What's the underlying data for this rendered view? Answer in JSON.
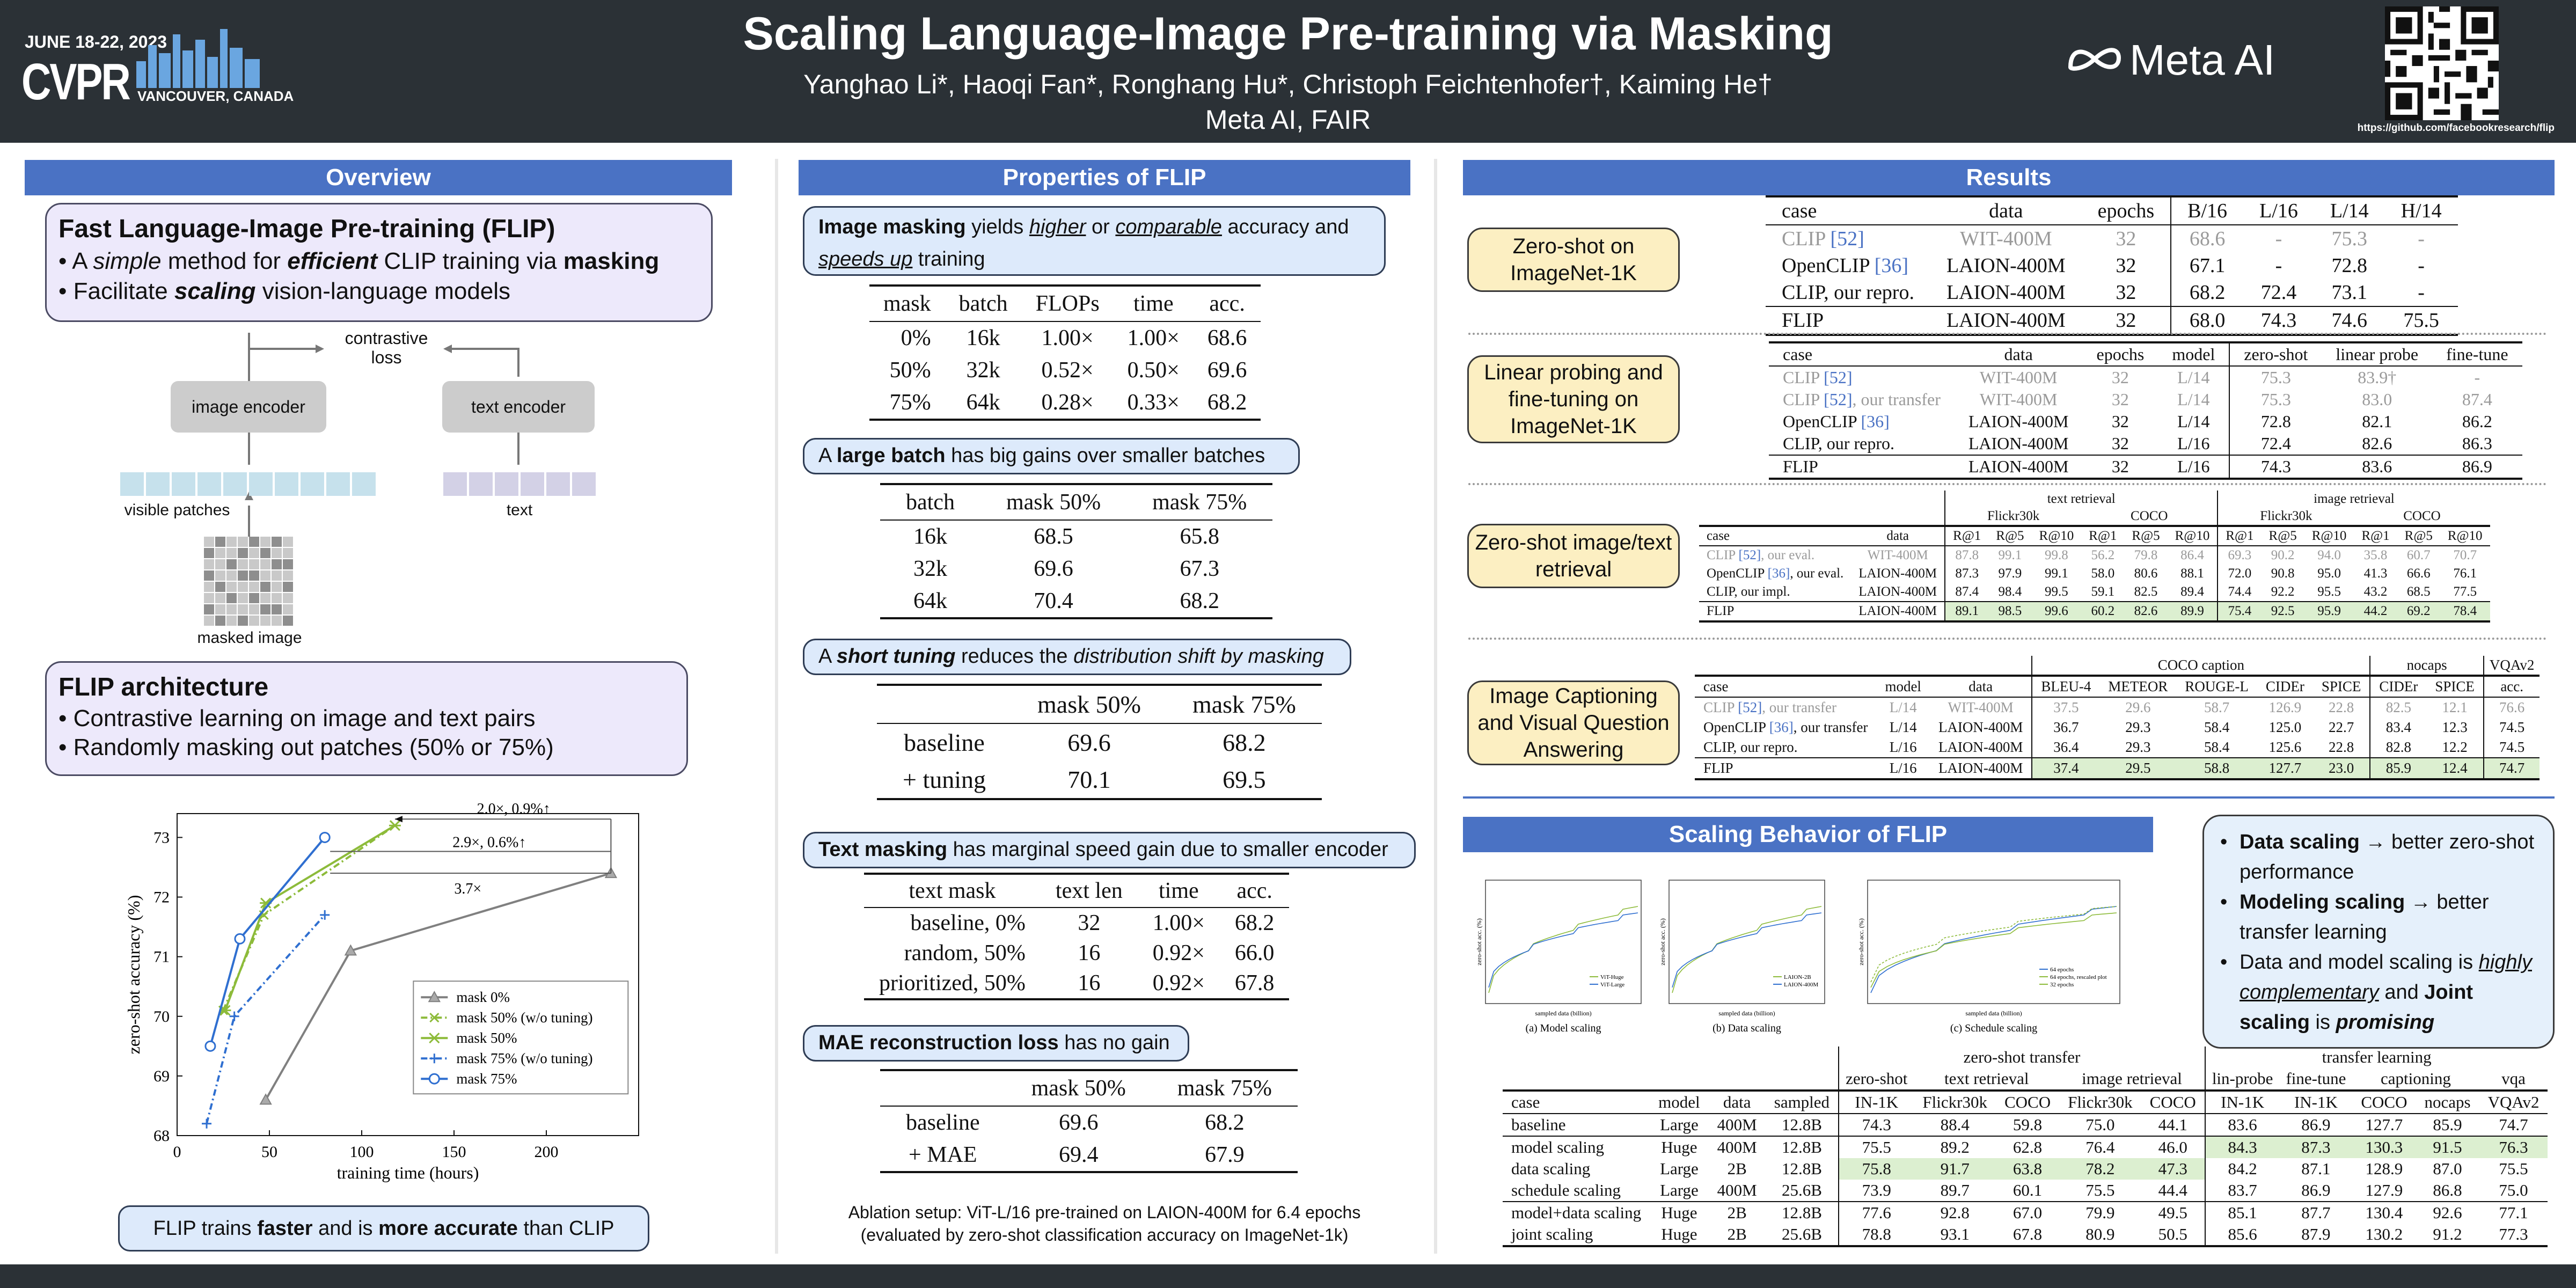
{
  "header": {
    "title": "Scaling Language-Image Pre-training via Masking",
    "authors": "Yanghao Li*, Haoqi Fan*, Ronghang Hu*, Christoph Feichtenhofer†, Kaiming He†",
    "affiliation": "Meta AI, FAIR",
    "conf_date": "JUNE 18-22, 2023",
    "conf_name": "CVPR",
    "conf_location": "VANCOUVER, CANADA",
    "meta_logo": "Meta AI",
    "url": "https://github.com/facebookresearch/flip"
  },
  "sections": {
    "overview": "Overview",
    "properties": "Properties of FLIP",
    "results": "Results",
    "scaling": "Scaling Behavior of FLIP"
  },
  "overview": {
    "box1_title": "Fast Language-Image Pre-training (FLIP)",
    "box1_l1_a": "• A ",
    "box1_l1_b": "simple",
    "box1_l1_c": " method for ",
    "box1_l1_d": "efficient",
    "box1_l1_e": " CLIP training via ",
    "box1_l1_f": "masking",
    "box1_l2_a": "• Facilitate ",
    "box1_l2_b": "scaling",
    "box1_l2_c": " vision-language models",
    "contrastive": "contrastive",
    "loss": "loss",
    "image_encoder": "image encoder",
    "text_encoder": "text encoder",
    "visible_patches": "visible patches",
    "text": "text",
    "masked_image": "masked image",
    "box2_title": "FLIP architecture",
    "box2_l1": "• Contrastive learning on image and text pairs",
    "box2_l2": "• Randomly masking out patches (50% or 75%)",
    "caption_a": "FLIP trains ",
    "caption_b": "faster",
    "caption_c": " and is ",
    "caption_d": "more accurate",
    "caption_e": " than CLIP"
  },
  "chart_data": {
    "type": "line",
    "xlabel": "training time (hours)",
    "ylabel": "zero-shot accuracy (%)",
    "xlim": [
      0,
      250
    ],
    "ylim": [
      68,
      73.4
    ],
    "xticks": [
      0,
      50,
      100,
      150,
      200
    ],
    "yticks": [
      68,
      69,
      70,
      71,
      72,
      73
    ],
    "series": [
      {
        "name": "mask 0%",
        "color": "#808080",
        "dash": "",
        "marker": "triangle",
        "x": [
          48,
          94,
          235
        ],
        "y": [
          68.6,
          71.1,
          72.4
        ]
      },
      {
        "name": "mask 50% (w/o tuning)",
        "color": "#8dbb3a",
        "dash": "12,6,3,6",
        "marker": "x",
        "x": [
          25,
          47,
          118
        ],
        "y": [
          70.1,
          71.7,
          73.2
        ]
      },
      {
        "name": "mask 50%",
        "color": "#8dbb3a",
        "dash": "",
        "marker": "star",
        "x": [
          26,
          48,
          118
        ],
        "y": [
          70.1,
          71.9,
          73.2
        ]
      },
      {
        "name": "mask 75% (w/o tuning)",
        "color": "#2f6fd0",
        "dash": "12,6,3,6",
        "marker": "plus",
        "x": [
          16,
          31,
          80
        ],
        "y": [
          68.2,
          70.0,
          71.7
        ]
      },
      {
        "name": "mask 75%",
        "color": "#2f6fd0",
        "dash": "",
        "marker": "circle",
        "x": [
          18,
          34,
          80
        ],
        "y": [
          69.5,
          71.3,
          73.0
        ]
      }
    ],
    "annotations": [
      "2.0×, 0.9%↑",
      "2.9×, 0.6%↑",
      "3.7×"
    ]
  },
  "properties": {
    "p1_a": "Image masking",
    "p1_b": " yields ",
    "p1_c": "higher",
    "p1_d": " or ",
    "p1_e": "comparable",
    "p1_f": " accuracy and ",
    "p1_g": "speeds up",
    "p1_h": " training",
    "t1_head": [
      "mask",
      "batch",
      "FLOPs",
      "time",
      "acc."
    ],
    "t1_rows": [
      [
        "0%",
        "16k",
        "1.00×",
        "1.00×",
        "68.6"
      ],
      [
        "50%",
        "32k",
        "0.52×",
        "0.50×",
        "69.6"
      ],
      [
        "75%",
        "64k",
        "0.28×",
        "0.33×",
        "68.2"
      ]
    ],
    "p2_a": "A ",
    "p2_b": "large batch",
    "p2_c": " has big gains over smaller batches",
    "t2_head": [
      "batch",
      "mask 50%",
      "mask 75%"
    ],
    "t2_rows": [
      [
        "16k",
        "68.5",
        "65.8"
      ],
      [
        "32k",
        "69.6",
        "67.3"
      ],
      [
        "64k",
        "70.4",
        "68.2"
      ]
    ],
    "p3_a": "A ",
    "p3_b": "short tuning",
    "p3_c": " reduces the ",
    "p3_d": "distribution shift by masking",
    "t3_head": [
      "",
      "mask 50%",
      "mask 75%"
    ],
    "t3_rows": [
      [
        "baseline",
        "69.6",
        "68.2"
      ],
      [
        "+ tuning",
        "70.1",
        "69.5"
      ]
    ],
    "p4_a": "Text masking",
    "p4_b": " has marginal speed gain due to smaller encoder",
    "t4_head": [
      "text mask",
      "text len",
      "time",
      "acc."
    ],
    "t4_rows": [
      [
        "baseline, 0%",
        "32",
        "1.00×",
        "68.2"
      ],
      [
        "random, 50%",
        "16",
        "0.92×",
        "66.0"
      ],
      [
        "prioritized, 50%",
        "16",
        "0.92×",
        "67.8"
      ]
    ],
    "p5_a": "MAE reconstruction loss",
    "p5_b": " has no gain",
    "t5_head": [
      "",
      "mask 50%",
      "mask 75%"
    ],
    "t5_rows": [
      [
        "baseline",
        "69.6",
        "68.2"
      ],
      [
        "+ MAE",
        "69.4",
        "67.9"
      ]
    ],
    "ablation1": "Ablation setup: ViT-L/16 pre-trained on LAION-400M for 6.4 epochs",
    "ablation2": "(evaluated by zero-shot classification accuracy on ImageNet-1k)"
  },
  "results": {
    "r1_label": "Zero-shot on ImageNet-1K",
    "r1_head": [
      "case",
      "data",
      "epochs",
      "B/16",
      "L/16",
      "L/14",
      "H/14"
    ],
    "r1_rows": [
      [
        "CLIP [52]",
        "WIT-400M",
        "32",
        "68.6",
        "-",
        "75.3",
        "-"
      ],
      [
        "OpenCLIP [36]",
        "LAION-400M",
        "32",
        "67.1",
        "-",
        "72.8",
        "-"
      ],
      [
        "CLIP, our repro.",
        "LAION-400M",
        "32",
        "68.2",
        "72.4",
        "73.1",
        "-"
      ],
      [
        "FLIP",
        "LAION-400M",
        "32",
        "68.0",
        "74.3",
        "74.6",
        "75.5"
      ]
    ],
    "r2_label": "Linear probing and fine-tuning on ImageNet-1K",
    "r2_head": [
      "case",
      "data",
      "epochs",
      "model",
      "zero-shot",
      "linear probe",
      "fine-tune"
    ],
    "r2_rows": [
      [
        "CLIP [52]",
        "WIT-400M",
        "32",
        "L/14",
        "75.3",
        "83.9†",
        "-"
      ],
      [
        "CLIP [52], our transfer",
        "WIT-400M",
        "32",
        "L/14",
        "75.3",
        "83.0",
        "87.4"
      ],
      [
        "OpenCLIP [36]",
        "LAION-400M",
        "32",
        "L/14",
        "72.8",
        "82.1",
        "86.2"
      ],
      [
        "CLIP, our repro.",
        "LAION-400M",
        "32",
        "L/16",
        "72.4",
        "82.6",
        "86.3"
      ],
      [
        "FLIP",
        "LAION-400M",
        "32",
        "L/16",
        "74.3",
        "83.6",
        "86.9"
      ]
    ],
    "r3_label": "Zero-shot image/text retrieval",
    "r3_group": [
      "text retrieval",
      "image retrieval"
    ],
    "r3_sub": [
      "Flickr30k",
      "COCO",
      "Flickr30k",
      "COCO"
    ],
    "r3_head": [
      "case",
      "data",
      "R@1",
      "R@5",
      "R@10",
      "R@1",
      "R@5",
      "R@10",
      "R@1",
      "R@5",
      "R@10",
      "R@1",
      "R@5",
      "R@10"
    ],
    "r3_rows": [
      [
        "CLIP [52], our eval.",
        "WIT-400M",
        "87.8",
        "99.1",
        "99.8",
        "56.2",
        "79.8",
        "86.4",
        "69.3",
        "90.2",
        "94.0",
        "35.8",
        "60.7",
        "70.7"
      ],
      [
        "OpenCLIP [36], our eval.",
        "LAION-400M",
        "87.3",
        "97.9",
        "99.1",
        "58.0",
        "80.6",
        "88.1",
        "72.0",
        "90.8",
        "95.0",
        "41.3",
        "66.6",
        "76.1"
      ],
      [
        "CLIP, our impl.",
        "LAION-400M",
        "87.4",
        "98.4",
        "99.5",
        "59.1",
        "82.5",
        "89.4",
        "74.4",
        "92.2",
        "95.5",
        "43.2",
        "68.5",
        "77.5"
      ],
      [
        "FLIP",
        "LAION-400M",
        "89.1",
        "98.5",
        "99.6",
        "60.2",
        "82.6",
        "89.9",
        "75.4",
        "92.5",
        "95.9",
        "44.2",
        "69.2",
        "78.4"
      ]
    ],
    "r4_label": "Image Captioning and Visual Question Answering",
    "r4_group": [
      "COCO caption",
      "nocaps",
      "VQAv2"
    ],
    "r4_head": [
      "case",
      "model",
      "data",
      "BLEU-4",
      "METEOR",
      "ROUGE-L",
      "CIDEr",
      "SPICE",
      "CIDEr",
      "SPICE",
      "acc."
    ],
    "r4_rows": [
      [
        "CLIP [52], our transfer",
        "L/14",
        "WIT-400M",
        "37.5",
        "29.6",
        "58.7",
        "126.9",
        "22.8",
        "82.5",
        "12.1",
        "76.6"
      ],
      [
        "OpenCLIP [36], our transfer",
        "L/14",
        "LAION-400M",
        "36.7",
        "29.3",
        "58.4",
        "125.0",
        "22.7",
        "83.4",
        "12.3",
        "74.5"
      ],
      [
        "CLIP, our repro.",
        "L/16",
        "LAION-400M",
        "36.4",
        "29.3",
        "58.4",
        "125.6",
        "22.8",
        "82.8",
        "12.2",
        "74.5"
      ],
      [
        "FLIP",
        "L/16",
        "LAION-400M",
        "37.4",
        "29.5",
        "58.8",
        "127.7",
        "23.0",
        "85.9",
        "12.4",
        "74.7"
      ]
    ]
  },
  "scaling": {
    "plot_a": "(a) Model scaling",
    "plot_b": "(b) Data scaling",
    "plot_c": "(c) Schedule scaling",
    "xlab": "sampled data (billion)",
    "ylab": "zero-shot acc. (%)",
    "leg_a": [
      "ViT-Huge",
      "ViT-Large"
    ],
    "leg_b": [
      "LAION-2B",
      "LAION-400M"
    ],
    "leg_c": [
      "64 epochs",
      "64 epochs, rescaled plot",
      "32 epochs"
    ],
    "sb1_a": "Data scaling",
    "sb1_b": " → better zero-shot performance",
    "sb2_a": "Modeling scaling",
    "sb2_b": " → better transfer learning",
    "sb3_a": "Data and model scaling is ",
    "sb3_b": "highly complementary",
    "sb3_c": " and ",
    "sb3_d": "Joint scaling",
    "sb3_e": " is ",
    "sb3_f": "promising",
    "grp": [
      "zero-shot transfer",
      "transfer learning"
    ],
    "sub": [
      "zero-shot",
      "text retrieval",
      "image retrieval",
      "lin-probe",
      "fine-tune",
      "captioning",
      "vqa"
    ],
    "head": [
      "case",
      "model",
      "data",
      "sampled",
      "IN-1K",
      "Flickr30k",
      "COCO",
      "Flickr30k",
      "COCO",
      "IN-1K",
      "IN-1K",
      "COCO",
      "nocaps",
      "VQAv2"
    ],
    "rows": [
      [
        "baseline",
        "Large",
        "400M",
        "12.8B",
        "74.3",
        "88.4",
        "59.8",
        "75.0",
        "44.1",
        "83.6",
        "86.9",
        "127.7",
        "85.9",
        "74.7"
      ],
      [
        "model scaling",
        "Huge",
        "400M",
        "12.8B",
        "75.5",
        "89.2",
        "62.8",
        "76.4",
        "46.0",
        "84.3",
        "87.3",
        "130.3",
        "91.5",
        "76.3"
      ],
      [
        "data scaling",
        "Large",
        "2B",
        "12.8B",
        "75.8",
        "91.7",
        "63.8",
        "78.2",
        "47.3",
        "84.2",
        "87.1",
        "128.9",
        "87.0",
        "75.5"
      ],
      [
        "schedule scaling",
        "Large",
        "400M",
        "25.6B",
        "73.9",
        "89.7",
        "60.1",
        "75.5",
        "44.4",
        "83.7",
        "86.9",
        "127.9",
        "86.8",
        "75.0"
      ],
      [
        "model+data scaling",
        "Huge",
        "2B",
        "12.8B",
        "77.6",
        "92.8",
        "67.0",
        "79.9",
        "49.5",
        "85.1",
        "87.7",
        "130.4",
        "92.6",
        "77.1"
      ],
      [
        "joint scaling",
        "Huge",
        "2B",
        "25.6B",
        "78.8",
        "93.1",
        "67.8",
        "80.9",
        "50.5",
        "85.6",
        "87.9",
        "130.2",
        "91.2",
        "77.3"
      ]
    ]
  }
}
